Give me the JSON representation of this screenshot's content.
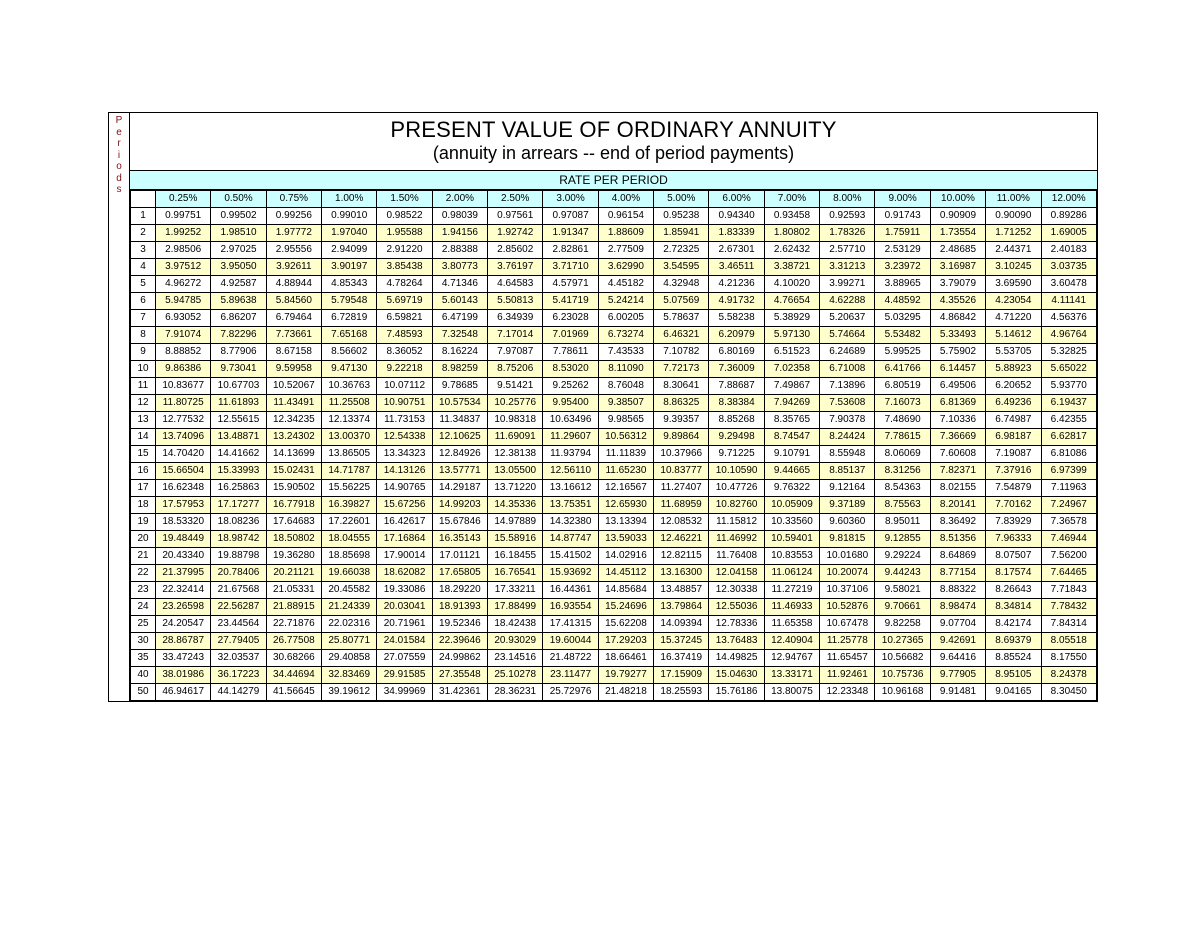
{
  "type": "table",
  "title": "PRESENT VALUE OF ORDINARY ANNUITY",
  "subtitle": "(annuity in arrears -- end of period payments)",
  "periods_label": "Periods",
  "rate_header": "RATE PER PERIOD",
  "colors": {
    "header_bg": "#ccffff",
    "stripe_bg": "#ffffcc",
    "border": "#000000",
    "background": "#ffffff",
    "periods_label_color": "#7b0f17"
  },
  "typography": {
    "title_fontsize": 22,
    "subtitle_fontsize": 18,
    "rate_header_fontsize": 12,
    "cell_fontsize": 10,
    "font_family": "Arial"
  },
  "columns": [
    "0.25%",
    "0.50%",
    "0.75%",
    "1.00%",
    "1.50%",
    "2.00%",
    "2.50%",
    "3.00%",
    "4.00%",
    "5.00%",
    "6.00%",
    "7.00%",
    "8.00%",
    "9.00%",
    "10.00%",
    "11.00%",
    "12.00%"
  ],
  "periods": [
    1,
    2,
    3,
    4,
    5,
    6,
    7,
    8,
    9,
    10,
    11,
    12,
    13,
    14,
    15,
    16,
    17,
    18,
    19,
    20,
    21,
    22,
    23,
    24,
    25,
    30,
    35,
    40,
    50
  ],
  "rows": [
    [
      "0.99751",
      "0.99502",
      "0.99256",
      "0.99010",
      "0.98522",
      "0.98039",
      "0.97561",
      "0.97087",
      "0.96154",
      "0.95238",
      "0.94340",
      "0.93458",
      "0.92593",
      "0.91743",
      "0.90909",
      "0.90090",
      "0.89286"
    ],
    [
      "1.99252",
      "1.98510",
      "1.97772",
      "1.97040",
      "1.95588",
      "1.94156",
      "1.92742",
      "1.91347",
      "1.88609",
      "1.85941",
      "1.83339",
      "1.80802",
      "1.78326",
      "1.75911",
      "1.73554",
      "1.71252",
      "1.69005"
    ],
    [
      "2.98506",
      "2.97025",
      "2.95556",
      "2.94099",
      "2.91220",
      "2.88388",
      "2.85602",
      "2.82861",
      "2.77509",
      "2.72325",
      "2.67301",
      "2.62432",
      "2.57710",
      "2.53129",
      "2.48685",
      "2.44371",
      "2.40183"
    ],
    [
      "3.97512",
      "3.95050",
      "3.92611",
      "3.90197",
      "3.85438",
      "3.80773",
      "3.76197",
      "3.71710",
      "3.62990",
      "3.54595",
      "3.46511",
      "3.38721",
      "3.31213",
      "3.23972",
      "3.16987",
      "3.10245",
      "3.03735"
    ],
    [
      "4.96272",
      "4.92587",
      "4.88944",
      "4.85343",
      "4.78264",
      "4.71346",
      "4.64583",
      "4.57971",
      "4.45182",
      "4.32948",
      "4.21236",
      "4.10020",
      "3.99271",
      "3.88965",
      "3.79079",
      "3.69590",
      "3.60478"
    ],
    [
      "5.94785",
      "5.89638",
      "5.84560",
      "5.79548",
      "5.69719",
      "5.60143",
      "5.50813",
      "5.41719",
      "5.24214",
      "5.07569",
      "4.91732",
      "4.76654",
      "4.62288",
      "4.48592",
      "4.35526",
      "4.23054",
      "4.11141"
    ],
    [
      "6.93052",
      "6.86207",
      "6.79464",
      "6.72819",
      "6.59821",
      "6.47199",
      "6.34939",
      "6.23028",
      "6.00205",
      "5.78637",
      "5.58238",
      "5.38929",
      "5.20637",
      "5.03295",
      "4.86842",
      "4.71220",
      "4.56376"
    ],
    [
      "7.91074",
      "7.82296",
      "7.73661",
      "7.65168",
      "7.48593",
      "7.32548",
      "7.17014",
      "7.01969",
      "6.73274",
      "6.46321",
      "6.20979",
      "5.97130",
      "5.74664",
      "5.53482",
      "5.33493",
      "5.14612",
      "4.96764"
    ],
    [
      "8.88852",
      "8.77906",
      "8.67158",
      "8.56602",
      "8.36052",
      "8.16224",
      "7.97087",
      "7.78611",
      "7.43533",
      "7.10782",
      "6.80169",
      "6.51523",
      "6.24689",
      "5.99525",
      "5.75902",
      "5.53705",
      "5.32825"
    ],
    [
      "9.86386",
      "9.73041",
      "9.59958",
      "9.47130",
      "9.22218",
      "8.98259",
      "8.75206",
      "8.53020",
      "8.11090",
      "7.72173",
      "7.36009",
      "7.02358",
      "6.71008",
      "6.41766",
      "6.14457",
      "5.88923",
      "5.65022"
    ],
    [
      "10.83677",
      "10.67703",
      "10.52067",
      "10.36763",
      "10.07112",
      "9.78685",
      "9.51421",
      "9.25262",
      "8.76048",
      "8.30641",
      "7.88687",
      "7.49867",
      "7.13896",
      "6.80519",
      "6.49506",
      "6.20652",
      "5.93770"
    ],
    [
      "11.80725",
      "11.61893",
      "11.43491",
      "11.25508",
      "10.90751",
      "10.57534",
      "10.25776",
      "9.95400",
      "9.38507",
      "8.86325",
      "8.38384",
      "7.94269",
      "7.53608",
      "7.16073",
      "6.81369",
      "6.49236",
      "6.19437"
    ],
    [
      "12.77532",
      "12.55615",
      "12.34235",
      "12.13374",
      "11.73153",
      "11.34837",
      "10.98318",
      "10.63496",
      "9.98565",
      "9.39357",
      "8.85268",
      "8.35765",
      "7.90378",
      "7.48690",
      "7.10336",
      "6.74987",
      "6.42355"
    ],
    [
      "13.74096",
      "13.48871",
      "13.24302",
      "13.00370",
      "12.54338",
      "12.10625",
      "11.69091",
      "11.29607",
      "10.56312",
      "9.89864",
      "9.29498",
      "8.74547",
      "8.24424",
      "7.78615",
      "7.36669",
      "6.98187",
      "6.62817"
    ],
    [
      "14.70420",
      "14.41662",
      "14.13699",
      "13.86505",
      "13.34323",
      "12.84926",
      "12.38138",
      "11.93794",
      "11.11839",
      "10.37966",
      "9.71225",
      "9.10791",
      "8.55948",
      "8.06069",
      "7.60608",
      "7.19087",
      "6.81086"
    ],
    [
      "15.66504",
      "15.33993",
      "15.02431",
      "14.71787",
      "14.13126",
      "13.57771",
      "13.05500",
      "12.56110",
      "11.65230",
      "10.83777",
      "10.10590",
      "9.44665",
      "8.85137",
      "8.31256",
      "7.82371",
      "7.37916",
      "6.97399"
    ],
    [
      "16.62348",
      "16.25863",
      "15.90502",
      "15.56225",
      "14.90765",
      "14.29187",
      "13.71220",
      "13.16612",
      "12.16567",
      "11.27407",
      "10.47726",
      "9.76322",
      "9.12164",
      "8.54363",
      "8.02155",
      "7.54879",
      "7.11963"
    ],
    [
      "17.57953",
      "17.17277",
      "16.77918",
      "16.39827",
      "15.67256",
      "14.99203",
      "14.35336",
      "13.75351",
      "12.65930",
      "11.68959",
      "10.82760",
      "10.05909",
      "9.37189",
      "8.75563",
      "8.20141",
      "7.70162",
      "7.24967"
    ],
    [
      "18.53320",
      "18.08236",
      "17.64683",
      "17.22601",
      "16.42617",
      "15.67846",
      "14.97889",
      "14.32380",
      "13.13394",
      "12.08532",
      "11.15812",
      "10.33560",
      "9.60360",
      "8.95011",
      "8.36492",
      "7.83929",
      "7.36578"
    ],
    [
      "19.48449",
      "18.98742",
      "18.50802",
      "18.04555",
      "17.16864",
      "16.35143",
      "15.58916",
      "14.87747",
      "13.59033",
      "12.46221",
      "11.46992",
      "10.59401",
      "9.81815",
      "9.12855",
      "8.51356",
      "7.96333",
      "7.46944"
    ],
    [
      "20.43340",
      "19.88798",
      "19.36280",
      "18.85698",
      "17.90014",
      "17.01121",
      "16.18455",
      "15.41502",
      "14.02916",
      "12.82115",
      "11.76408",
      "10.83553",
      "10.01680",
      "9.29224",
      "8.64869",
      "8.07507",
      "7.56200"
    ],
    [
      "21.37995",
      "20.78406",
      "20.21121",
      "19.66038",
      "18.62082",
      "17.65805",
      "16.76541",
      "15.93692",
      "14.45112",
      "13.16300",
      "12.04158",
      "11.06124",
      "10.20074",
      "9.44243",
      "8.77154",
      "8.17574",
      "7.64465"
    ],
    [
      "22.32414",
      "21.67568",
      "21.05331",
      "20.45582",
      "19.33086",
      "18.29220",
      "17.33211",
      "16.44361",
      "14.85684",
      "13.48857",
      "12.30338",
      "11.27219",
      "10.37106",
      "9.58021",
      "8.88322",
      "8.26643",
      "7.71843"
    ],
    [
      "23.26598",
      "22.56287",
      "21.88915",
      "21.24339",
      "20.03041",
      "18.91393",
      "17.88499",
      "16.93554",
      "15.24696",
      "13.79864",
      "12.55036",
      "11.46933",
      "10.52876",
      "9.70661",
      "8.98474",
      "8.34814",
      "7.78432"
    ],
    [
      "24.20547",
      "23.44564",
      "22.71876",
      "22.02316",
      "20.71961",
      "19.52346",
      "18.42438",
      "17.41315",
      "15.62208",
      "14.09394",
      "12.78336",
      "11.65358",
      "10.67478",
      "9.82258",
      "9.07704",
      "8.42174",
      "7.84314"
    ],
    [
      "28.86787",
      "27.79405",
      "26.77508",
      "25.80771",
      "24.01584",
      "22.39646",
      "20.93029",
      "19.60044",
      "17.29203",
      "15.37245",
      "13.76483",
      "12.40904",
      "11.25778",
      "10.27365",
      "9.42691",
      "8.69379",
      "8.05518"
    ],
    [
      "33.47243",
      "32.03537",
      "30.68266",
      "29.40858",
      "27.07559",
      "24.99862",
      "23.14516",
      "21.48722",
      "18.66461",
      "16.37419",
      "14.49825",
      "12.94767",
      "11.65457",
      "10.56682",
      "9.64416",
      "8.85524",
      "8.17550"
    ],
    [
      "38.01986",
      "36.17223",
      "34.44694",
      "32.83469",
      "29.91585",
      "27.35548",
      "25.10278",
      "23.11477",
      "19.79277",
      "17.15909",
      "15.04630",
      "13.33171",
      "11.92461",
      "10.75736",
      "9.77905",
      "8.95105",
      "8.24378"
    ],
    [
      "46.94617",
      "44.14279",
      "41.56645",
      "39.19612",
      "34.99969",
      "31.42361",
      "28.36231",
      "25.72976",
      "21.48218",
      "18.25593",
      "15.76186",
      "13.80075",
      "12.23348",
      "10.96168",
      "9.91481",
      "9.04165",
      "8.30450"
    ]
  ],
  "stripe_even_rows": true
}
